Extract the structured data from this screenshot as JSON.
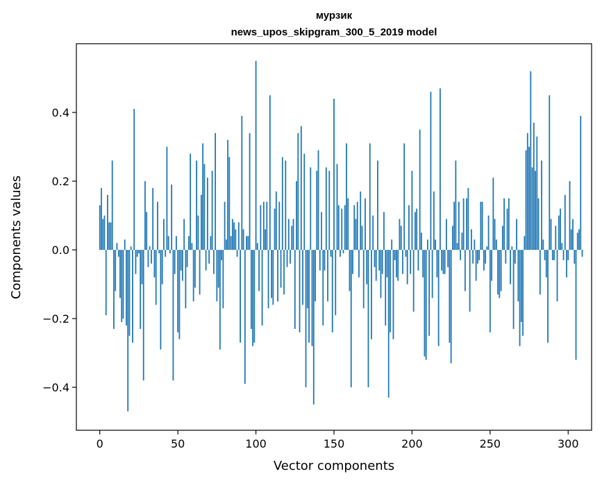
{
  "chart_data": {
    "type": "bar",
    "title_line1": "мурзик",
    "title_line2": "news_upos_skipgram_300_5_2019 model",
    "xlabel": "Vector components",
    "ylabel": "Components values",
    "xlim": [
      -15,
      315
    ],
    "ylim": [
      -0.525,
      0.6
    ],
    "xticks": [
      0,
      50,
      100,
      150,
      200,
      250,
      300
    ],
    "xtick_labels": [
      "0",
      "50",
      "100",
      "150",
      "200",
      "250",
      "300"
    ],
    "yticks": [
      -0.4,
      -0.2,
      0.0,
      0.2,
      0.4
    ],
    "ytick_labels": [
      "−0.4",
      "−0.2",
      "0.0",
      "0.2",
      "0.4"
    ],
    "bar_color": "#1f77b4",
    "values": [
      0.13,
      0.18,
      0.09,
      0.1,
      -0.19,
      0.16,
      0.08,
      0.08,
      0.26,
      -0.23,
      -0.12,
      0.02,
      -0.02,
      -0.14,
      -0.21,
      -0.2,
      0.03,
      -0.22,
      -0.47,
      -0.25,
      0.01,
      -0.27,
      0.41,
      -0.07,
      -0.02,
      -0.01,
      -0.23,
      -0.1,
      -0.38,
      0.2,
      0.11,
      -0.05,
      0.01,
      -0.04,
      0.18,
      -0.08,
      -0.16,
      0.14,
      -0.01,
      -0.29,
      -0.1,
      0.09,
      -0.02,
      0.3,
      0.04,
      -0.01,
      0.19,
      -0.38,
      -0.07,
      0.04,
      -0.24,
      -0.26,
      -0.06,
      -0.09,
      0.09,
      -0.17,
      -0.05,
      0.04,
      0.28,
      0.02,
      -0.15,
      -0.11,
      0.26,
      0.1,
      -0.13,
      0.16,
      0.31,
      0.25,
      -0.06,
      0.21,
      -0.04,
      0.04,
      0.23,
      -0.07,
      0.34,
      -0.15,
      -0.11,
      -0.29,
      -0.03,
      -0.17,
      0.14,
      0.03,
      0.32,
      0.27,
      0.04,
      0.09,
      0.08,
      0.06,
      -0.02,
      0.08,
      -0.27,
      0.39,
      0.06,
      -0.39,
      0.04,
      0.04,
      0.34,
      -0.23,
      -0.28,
      -0.27,
      0.55,
      0.02,
      -0.12,
      0.13,
      -0.22,
      0.14,
      0.06,
      0.14,
      -0.17,
      0.45,
      -0.14,
      -0.16,
      0.12,
      0.17,
      -0.15,
      0.14,
      -0.11,
      0.27,
      -0.13,
      0.26,
      -0.05,
      0.09,
      -0.04,
      0.07,
      0.09,
      -0.23,
      0.2,
      0.34,
      -0.24,
      0.36,
      -0.16,
      0.28,
      -0.4,
      -0.17,
      -0.27,
      0.24,
      -0.28,
      -0.45,
      -0.15,
      0.23,
      0.29,
      -0.06,
      0.11,
      -0.22,
      -0.06,
      0.24,
      -0.15,
      0.23,
      -0.02,
      -0.24,
      0.44,
      -0.19,
      0.25,
      0.13,
      -0.02,
      0.12,
      -0.01,
      0.13,
      0.31,
      0.15,
      -0.12,
      -0.4,
      -0.07,
      0.13,
      0.09,
      0.14,
      -0.08,
      0.17,
      0.07,
      -0.17,
      0.15,
      -0.1,
      -0.4,
      0.31,
      -0.26,
      0.1,
      -0.05,
      -0.09,
      0.26,
      -0.06,
      -0.14,
      -0.07,
      0.11,
      -0.22,
      -0.08,
      -0.43,
      -0.24,
      0.03,
      -0.26,
      -0.03,
      -0.08,
      -0.09,
      0.09,
      0.07,
      -0.07,
      0.31,
      -0.02,
      -0.1,
      0.13,
      -0.07,
      0.23,
      -0.18,
      0.11,
      0.12,
      -0.06,
      0.35,
      0.05,
      -0.08,
      -0.31,
      -0.32,
      0.03,
      -0.25,
      0.46,
      -0.14,
      0.17,
      0.03,
      -0.08,
      -0.28,
      0.47,
      -0.06,
      -0.07,
      -0.07,
      0.09,
      -0.05,
      -0.27,
      -0.33,
      0.07,
      0.14,
      0.26,
      0.02,
      0.14,
      -0.03,
      0.05,
      0.15,
      -0.12,
      0.15,
      0.18,
      -0.18,
      0.06,
      -0.04,
      0.03,
      -0.09,
      -0.04,
      -0.03,
      0.14,
      0.14,
      -0.06,
      -0.04,
      0.01,
      0.1,
      -0.24,
      -0.09,
      0.21,
      0.09,
      0.03,
      -0.13,
      -0.14,
      -0.12,
      0.07,
      0.15,
      -0.04,
      0.12,
      0.15,
      -0.1,
      0.01,
      -0.23,
      -0.04,
      0.09,
      -0.15,
      -0.28,
      -0.21,
      -0.25,
      0.04,
      0.29,
      0.34,
      0.3,
      0.52,
      0.24,
      0.37,
      0.23,
      0.33,
      0.15,
      -0.13,
      0.26,
      0.03,
      -0.03,
      -0.08,
      -0.27,
      0.45,
      0.09,
      -0.03,
      -0.03,
      0.07,
      -0.15,
      0.1,
      0.12,
      0.02,
      -0.03,
      0.16,
      -0.08,
      -0.03,
      0.2,
      0.06,
      0.09,
      -0.04,
      -0.32,
      0.05,
      0.06,
      0.39,
      -0.02,
      0.0
    ]
  }
}
